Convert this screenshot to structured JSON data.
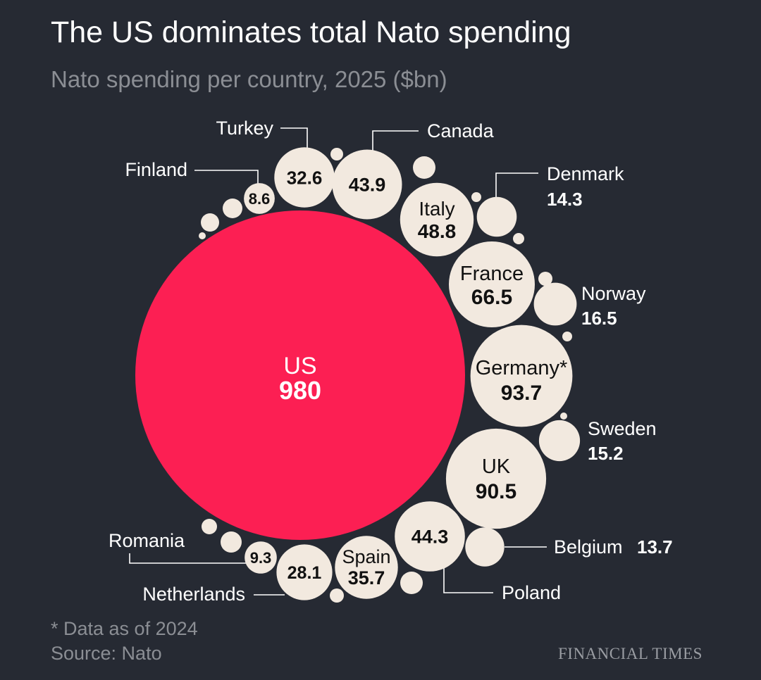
{
  "title": "The US dominates total Nato spending",
  "subtitle": "Nato spending per country, 2025 ($bn)",
  "footnote": "* Data as of 2024",
  "source": "Source: Nato",
  "publisher": "FINANCIAL TIMES",
  "colors": {
    "background": "#262a33",
    "us_bubble": "#fc1f53",
    "country_bubble": "#f2e9df",
    "label_text": "#ffffff",
    "bubble_text": "#111111",
    "muted_text": "#8b8e94",
    "leader_line": "#ffffff"
  },
  "chart_data": {
    "type": "bubble",
    "title": "The US dominates total Nato spending",
    "subtitle": "Nato spending per country, 2025 ($bn)",
    "unit": "$bn",
    "items": [
      {
        "name": "US",
        "value": 980
      },
      {
        "name": "Germany*",
        "value": 93.7
      },
      {
        "name": "UK",
        "value": 90.5
      },
      {
        "name": "France",
        "value": 66.5
      },
      {
        "name": "Italy",
        "value": 48.8
      },
      {
        "name": "",
        "value": 44.3,
        "legend": "Poland"
      },
      {
        "name": "",
        "value": 43.9,
        "legend": "Canada"
      },
      {
        "name": "Spain",
        "value": 35.7
      },
      {
        "name": "",
        "value": 32.6,
        "legend": "Turkey"
      },
      {
        "name": "",
        "value": 28.1,
        "legend": "Netherlands"
      },
      {
        "name": "",
        "value": 16.5,
        "legend": "Norway"
      },
      {
        "name": "",
        "value": 15.2,
        "legend": "Sweden"
      },
      {
        "name": "",
        "value": 14.3,
        "legend": "Denmark"
      },
      {
        "name": "",
        "value": 13.7,
        "legend": "Belgium"
      },
      {
        "name": "",
        "value": 9.3,
        "legend": "Romania"
      },
      {
        "name": "",
        "value": 8.6,
        "legend": "Finland"
      }
    ]
  }
}
